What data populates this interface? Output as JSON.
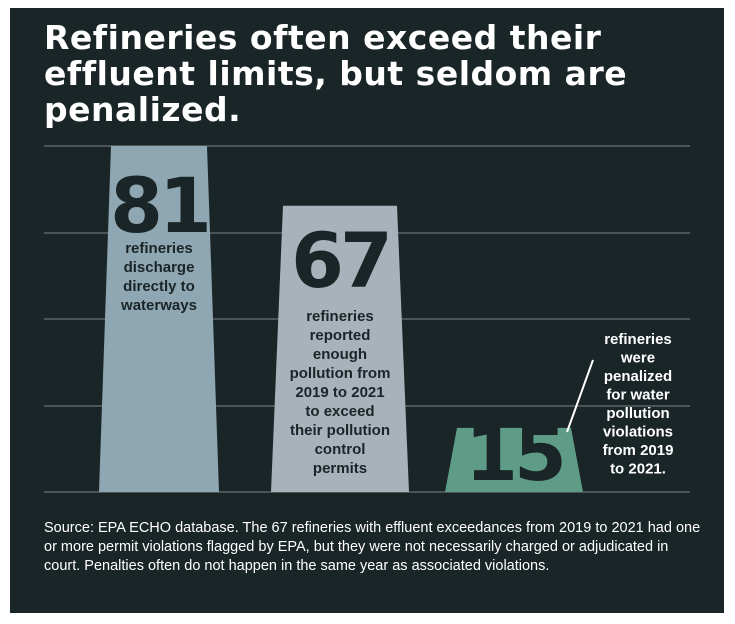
{
  "title": "Refineries often exceed their effluent limits, but seldom are penalized.",
  "source": "Source:  EPA ECHO database. The 67 refineries with effluent exceedances from 2019 to 2021 had one or more permit violations flagged by EPA, but they were not necessarily charged or adjudicated in court.  Penalties often do not happen in the same year as associated violations.",
  "colors": {
    "background": "#1a2527",
    "bar1": "#8ea7b2",
    "bar2": "#a9b2bb",
    "bar3": "#5e9c87",
    "gridline": "#4b5558"
  },
  "chart_data": {
    "type": "bar",
    "title": "Refineries often exceed their effluent limits, but seldom are penalized.",
    "categories": [
      "refineries discharge directly to waterways",
      "refineries reported enough pollution from 2019 to 2021 to exceed their pollution control permits",
      "refineries were penalized for water pollution violations from 2019 to 2021."
    ],
    "values": [
      81,
      67,
      15
    ],
    "value_labels": [
      "81",
      "67",
      "15"
    ],
    "label_lines": [
      [
        "refineries",
        "discharge",
        "directly to",
        "waterways"
      ],
      [
        "refineries",
        "reported",
        "enough",
        "pollution from",
        "2019 to 2021",
        "to exceed",
        "their pollution",
        "control",
        "permits"
      ],
      [
        "refineries",
        "were",
        "penalized",
        "for water",
        "pollution",
        "violations",
        "from 2019",
        "to 2021."
      ]
    ],
    "xlabel": "",
    "ylabel": "",
    "grid": true,
    "legend": "none"
  }
}
